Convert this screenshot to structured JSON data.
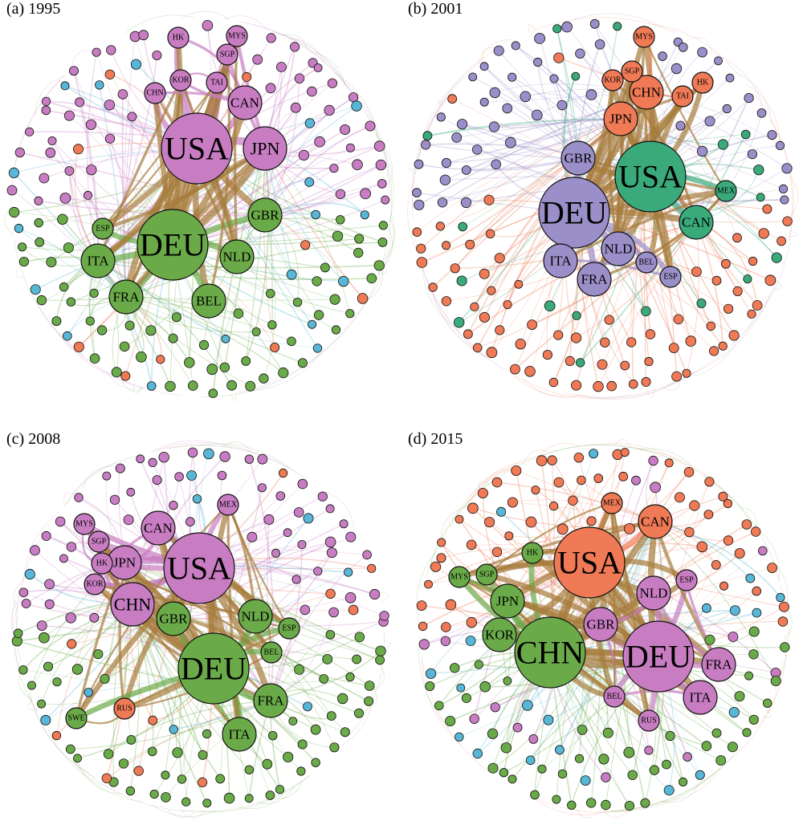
{
  "colors": {
    "pink": "#c87dc2",
    "green": "#6aaa48",
    "green_dark": "#5b9a3e",
    "orange": "#ef7a55",
    "purple": "#9b8fc9",
    "teal": "#3aaa7a",
    "cyan": "#58b7d6",
    "brown": "#a67c3c",
    "node_stroke": "#111111"
  },
  "panels": [
    {
      "title": "(a) 1995",
      "hubs": [
        {
          "label": "USA",
          "group": "pink",
          "size": 5
        },
        {
          "label": "DEU",
          "group": "green",
          "size": 5
        },
        {
          "label": "JPN",
          "group": "pink",
          "size": 3
        },
        {
          "label": "GBR",
          "group": "green",
          "size": 2
        },
        {
          "label": "FRA",
          "group": "green",
          "size": 2
        },
        {
          "label": "ITA",
          "group": "green",
          "size": 2
        },
        {
          "label": "CAN",
          "group": "pink",
          "size": 2
        },
        {
          "label": "NLD",
          "group": "green",
          "size": 2
        },
        {
          "label": "BEL",
          "group": "green",
          "size": 2
        },
        {
          "label": "CHN",
          "group": "pink",
          "size": 1
        },
        {
          "label": "KOR",
          "group": "pink",
          "size": 1
        },
        {
          "label": "HK",
          "group": "pink",
          "size": 1
        },
        {
          "label": "MYS",
          "group": "pink",
          "size": 1
        },
        {
          "label": "SGP",
          "group": "pink",
          "size": 1
        },
        {
          "label": "TAI",
          "group": "pink",
          "size": 1
        },
        {
          "label": "ESP",
          "group": "green",
          "size": 1
        }
      ]
    },
    {
      "title": "(b) 2001",
      "hubs": [
        {
          "label": "USA",
          "group": "teal",
          "size": 5
        },
        {
          "label": "DEU",
          "group": "purple",
          "size": 5
        },
        {
          "label": "JPN",
          "group": "orange",
          "size": 2
        },
        {
          "label": "GBR",
          "group": "purple",
          "size": 2
        },
        {
          "label": "CHN",
          "group": "orange",
          "size": 2
        },
        {
          "label": "CAN",
          "group": "teal",
          "size": 2
        },
        {
          "label": "NLD",
          "group": "purple",
          "size": 2
        },
        {
          "label": "ITA",
          "group": "purple",
          "size": 2
        },
        {
          "label": "FRA",
          "group": "purple",
          "size": 2
        },
        {
          "label": "BEL",
          "group": "purple",
          "size": 1
        },
        {
          "label": "KOR",
          "group": "orange",
          "size": 1
        },
        {
          "label": "SGP",
          "group": "orange",
          "size": 1
        },
        {
          "label": "TAI",
          "group": "orange",
          "size": 1
        },
        {
          "label": "HK",
          "group": "orange",
          "size": 1
        },
        {
          "label": "MYS",
          "group": "orange",
          "size": 1
        },
        {
          "label": "MEX",
          "group": "teal",
          "size": 1
        },
        {
          "label": "ESP",
          "group": "purple",
          "size": 1
        }
      ]
    },
    {
      "title": "(c) 2008",
      "hubs": [
        {
          "label": "USA",
          "group": "pink",
          "size": 5
        },
        {
          "label": "DEU",
          "group": "green",
          "size": 5
        },
        {
          "label": "CHN",
          "group": "pink",
          "size": 3
        },
        {
          "label": "JPN",
          "group": "pink",
          "size": 2
        },
        {
          "label": "GBR",
          "group": "green",
          "size": 2
        },
        {
          "label": "FRA",
          "group": "green",
          "size": 2
        },
        {
          "label": "ITA",
          "group": "green",
          "size": 2
        },
        {
          "label": "CAN",
          "group": "pink",
          "size": 2
        },
        {
          "label": "NLD",
          "group": "green",
          "size": 2
        },
        {
          "label": "BEL",
          "group": "green",
          "size": 1
        },
        {
          "label": "ESP",
          "group": "green",
          "size": 1
        },
        {
          "label": "KOR",
          "group": "pink",
          "size": 1
        },
        {
          "label": "MYS",
          "group": "pink",
          "size": 1
        },
        {
          "label": "SGP",
          "group": "pink",
          "size": 1
        },
        {
          "label": "HK",
          "group": "pink",
          "size": 1
        },
        {
          "label": "MEX",
          "group": "pink",
          "size": 1
        },
        {
          "label": "RUS",
          "group": "orange",
          "size": 1
        },
        {
          "label": "SWE",
          "group": "green",
          "size": 1
        }
      ]
    },
    {
      "title": "(d) 2015",
      "hubs": [
        {
          "label": "USA",
          "group": "orange",
          "size": 5
        },
        {
          "label": "CHN",
          "group": "green",
          "size": 5
        },
        {
          "label": "DEU",
          "group": "pink",
          "size": 5
        },
        {
          "label": "JPN",
          "group": "green",
          "size": 2
        },
        {
          "label": "CAN",
          "group": "orange",
          "size": 2
        },
        {
          "label": "GBR",
          "group": "pink",
          "size": 2
        },
        {
          "label": "FRA",
          "group": "pink",
          "size": 2
        },
        {
          "label": "ITA",
          "group": "pink",
          "size": 2
        },
        {
          "label": "NLD",
          "group": "pink",
          "size": 2
        },
        {
          "label": "KOR",
          "group": "green",
          "size": 2
        },
        {
          "label": "BEL",
          "group": "pink",
          "size": 1
        },
        {
          "label": "MEX",
          "group": "orange",
          "size": 1
        },
        {
          "label": "SGP",
          "group": "green",
          "size": 1
        },
        {
          "label": "HK",
          "group": "green",
          "size": 1
        },
        {
          "label": "ESP",
          "group": "pink",
          "size": 1
        },
        {
          "label": "RUS",
          "group": "pink",
          "size": 1
        },
        {
          "label": "MYS",
          "group": "green",
          "size": 1
        }
      ]
    }
  ]
}
